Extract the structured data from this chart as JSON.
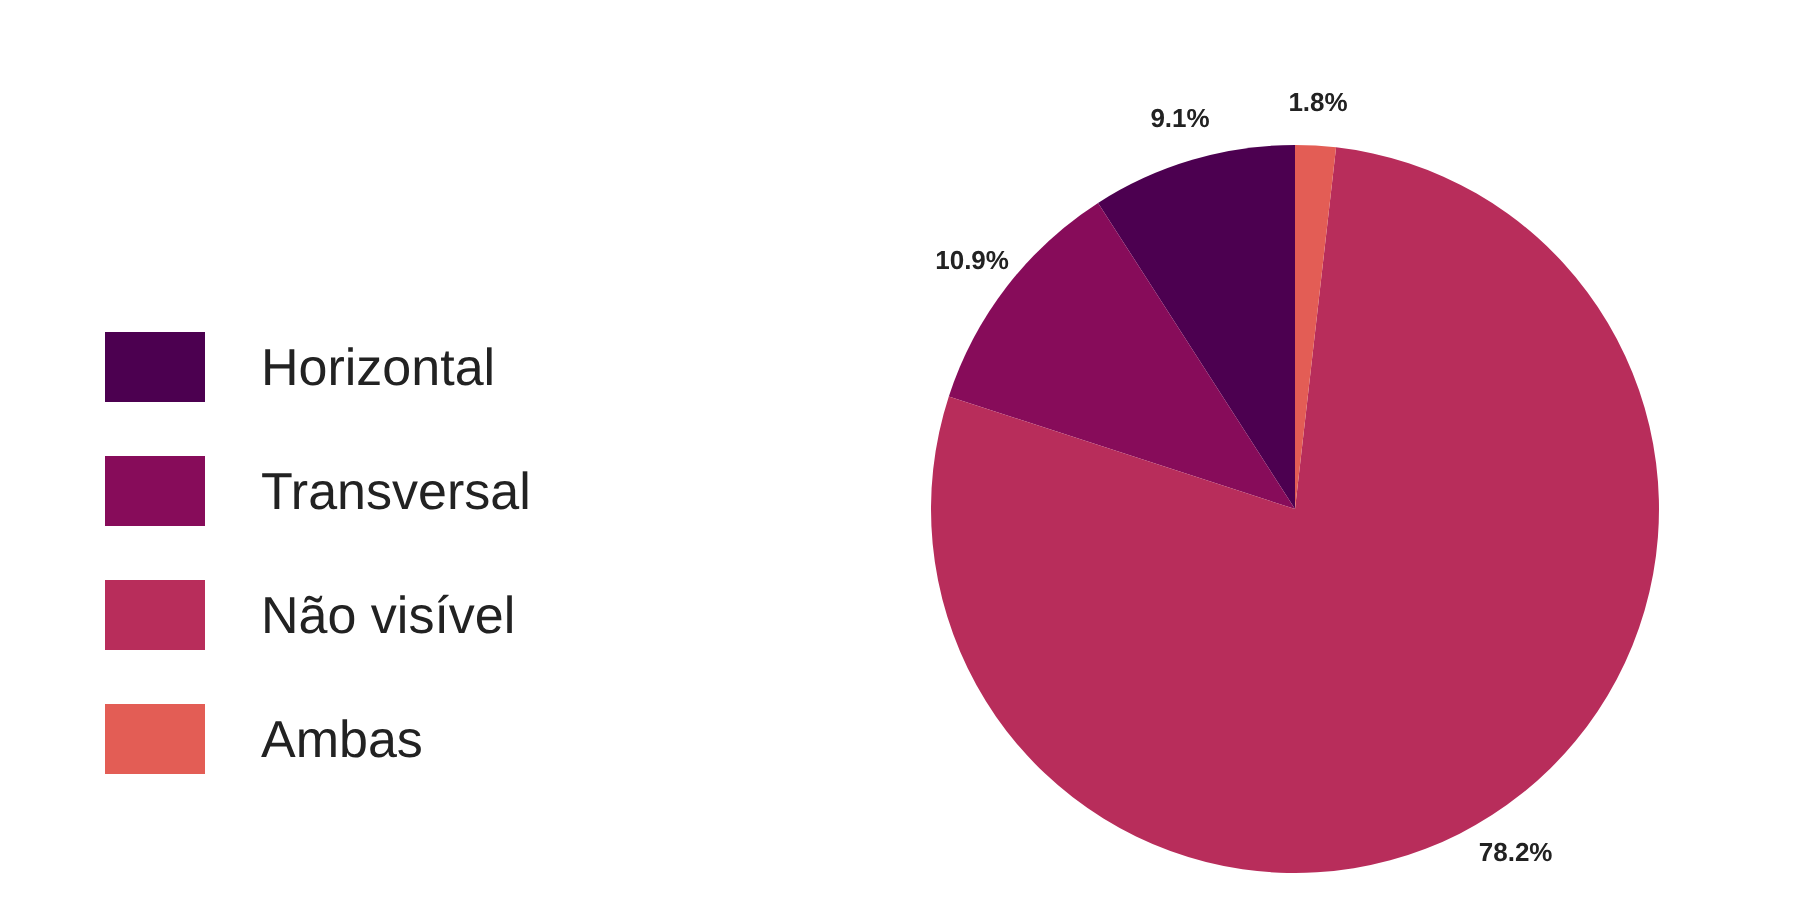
{
  "chart_data": {
    "type": "pie",
    "categories": [
      "Horizontal",
      "Transversal",
      "Não visível",
      "Ambas"
    ],
    "values": [
      9.1,
      10.9,
      78.2,
      1.8
    ],
    "colors": [
      "#4c0050",
      "#870c5a",
      "#b82d5b",
      "#e35d55"
    ],
    "value_labels": [
      "9.1%",
      "10.9%",
      "78.2%",
      "1.8%"
    ],
    "legend": "left"
  }
}
